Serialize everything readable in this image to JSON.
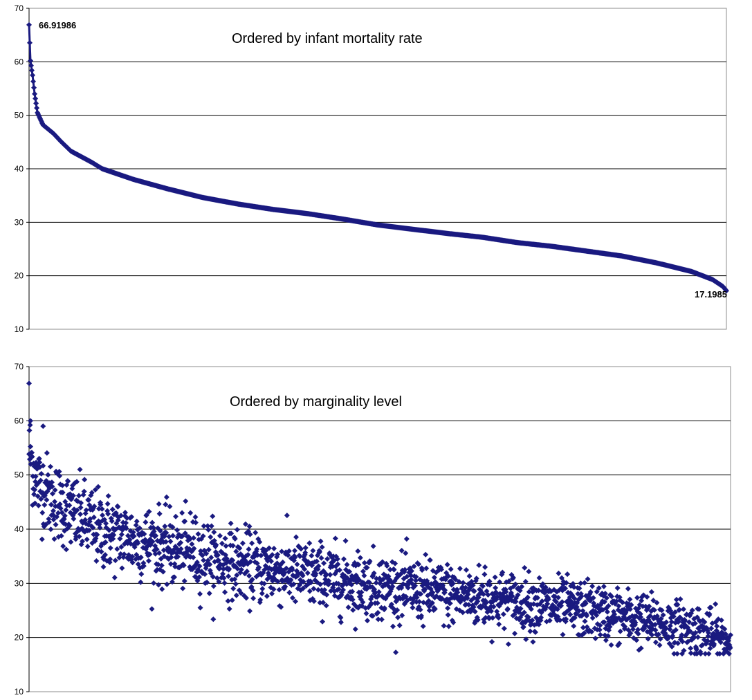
{
  "chart_data": [
    {
      "type": "line",
      "title": "Ordered by infant mortality rate",
      "xlabel": "",
      "ylabel": "",
      "ylim": [
        10,
        70
      ],
      "yticks": [
        10,
        20,
        30,
        40,
        50,
        60,
        70
      ],
      "grid": "horizontal",
      "legend": "none",
      "marker": "diamond",
      "color": "#1a1a80",
      "n_points": 1000,
      "curve_knots": [
        [
          0,
          66.91986
        ],
        [
          0.002,
          60.2
        ],
        [
          0.005,
          57.5
        ],
        [
          0.008,
          54.0
        ],
        [
          0.012,
          50.5
        ],
        [
          0.02,
          48.2
        ],
        [
          0.035,
          46.6
        ],
        [
          0.045,
          45.2
        ],
        [
          0.06,
          43.3
        ],
        [
          0.09,
          41.2
        ],
        [
          0.105,
          40.0
        ],
        [
          0.15,
          38.0
        ],
        [
          0.2,
          36.2
        ],
        [
          0.25,
          34.6
        ],
        [
          0.3,
          33.4
        ],
        [
          0.35,
          32.4
        ],
        [
          0.4,
          31.6
        ],
        [
          0.45,
          30.6
        ],
        [
          0.5,
          29.5
        ],
        [
          0.55,
          28.7
        ],
        [
          0.6,
          27.9
        ],
        [
          0.65,
          27.2
        ],
        [
          0.7,
          26.2
        ],
        [
          0.75,
          25.5
        ],
        [
          0.8,
          24.6
        ],
        [
          0.85,
          23.7
        ],
        [
          0.9,
          22.4
        ],
        [
          0.95,
          20.8
        ],
        [
          0.98,
          19.3
        ],
        [
          0.995,
          18.0
        ],
        [
          1.0,
          17.1985
        ]
      ],
      "annotations": [
        {
          "label": "66.91986",
          "at": "first",
          "value": 66.91986
        },
        {
          "label": "17.1985",
          "at": "last",
          "value": 17.1985
        }
      ]
    },
    {
      "type": "scatter",
      "title": "Ordered by marginality level",
      "xlabel": "",
      "ylabel": "",
      "ylim": [
        10,
        70
      ],
      "yticks": [
        10,
        20,
        30,
        40,
        50,
        60,
        70
      ],
      "grid": "horizontal",
      "legend": "none",
      "marker": "diamond",
      "color": "#1a1a80",
      "n_points": 2000,
      "trend_knots": [
        [
          0,
          55
        ],
        [
          0.01,
          49
        ],
        [
          0.03,
          46
        ],
        [
          0.06,
          43
        ],
        [
          0.1,
          40
        ],
        [
          0.15,
          38
        ],
        [
          0.2,
          36.5
        ],
        [
          0.3,
          33.5
        ],
        [
          0.4,
          31.5
        ],
        [
          0.5,
          29.5
        ],
        [
          0.6,
          28
        ],
        [
          0.7,
          26.5
        ],
        [
          0.8,
          25
        ],
        [
          0.9,
          22.5
        ],
        [
          0.95,
          21.5
        ],
        [
          1.0,
          19
        ]
      ],
      "spread": 2.3,
      "highlight_points": [
        [
          0,
          66.9
        ],
        [
          0.002,
          60
        ],
        [
          0.02,
          59
        ],
        [
          0.23,
          43
        ],
        [
          0.65,
          33
        ],
        [
          0.49,
          24
        ]
      ]
    }
  ]
}
